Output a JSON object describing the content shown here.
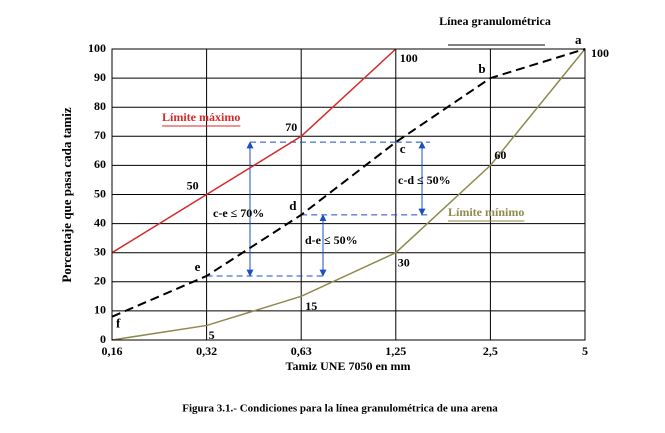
{
  "chart_data": {
    "type": "line",
    "caption": "Figura 3.1.- Condiciones para la línea granulométrica de una arena",
    "x_label": "Tamiz UNE 7050 en mm",
    "y_label": "Porcentaje que pasa cada tamiz",
    "categories": [
      "0,16",
      "0,32",
      "0,63",
      "1,25",
      "2,5",
      "5"
    ],
    "ylim": [
      0,
      100
    ],
    "yticks": [
      0,
      10,
      20,
      30,
      40,
      50,
      60,
      70,
      80,
      90,
      100
    ],
    "grid": true,
    "series": [
      {
        "name": "Límite máximo",
        "color": "#d42a2a",
        "dash": false,
        "values": [
          30,
          50,
          70,
          100,
          null,
          null
        ],
        "show_labels": [
          false,
          true,
          true,
          true,
          false,
          false
        ]
      },
      {
        "name": "Límite mínimo",
        "color": "#8e8a4e",
        "dash": false,
        "values": [
          0,
          5,
          15,
          30,
          60,
          100
        ],
        "show_labels": [
          false,
          true,
          true,
          true,
          true,
          true
        ]
      },
      {
        "name": "Línea granulométrica",
        "color": "#000000",
        "dash": true,
        "values": [
          8,
          22,
          43,
          68,
          90,
          100
        ],
        "point_labels": [
          "f",
          "e",
          "d",
          "c",
          "b",
          "a"
        ]
      }
    ],
    "annotations": [
      "c-d ≤ 50%",
      "c-e ≤ 70%",
      "d-e ≤ 50%"
    ]
  }
}
